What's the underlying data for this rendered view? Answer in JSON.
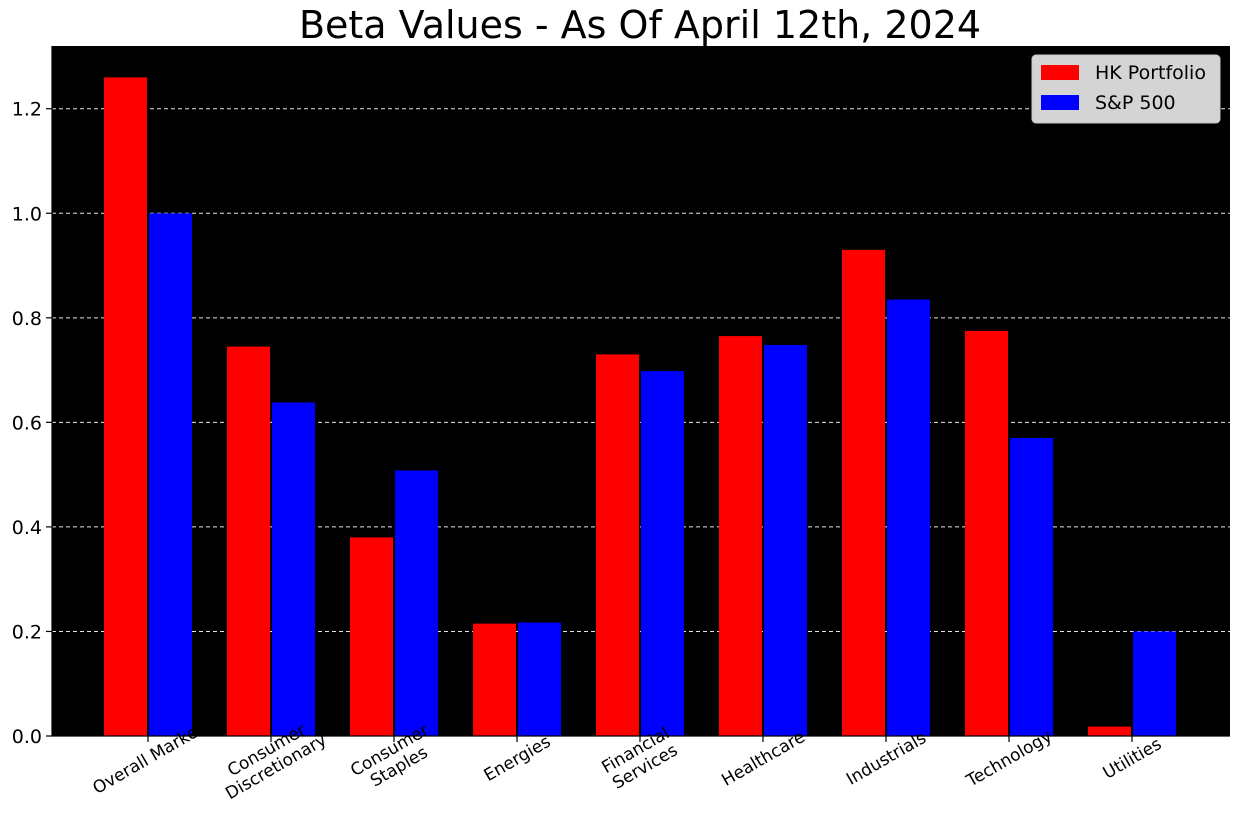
{
  "chart_data": {
    "type": "bar",
    "title": "Beta Values - As Of April 12th, 2024",
    "xlabel": "",
    "ylabel": "",
    "ylim": [
      0,
      1.32
    ],
    "yticks": [
      "0.0",
      "0.2",
      "0.4",
      "0.6",
      "0.8",
      "1.0",
      "1.2"
    ],
    "grid": "horizontal dashed",
    "legend_position": "top-right",
    "background": "#000000",
    "categories": [
      [
        "Overall Market"
      ],
      [
        "Consumer",
        "Discretionary"
      ],
      [
        "Consumer",
        "Staples"
      ],
      [
        "Energies"
      ],
      [
        "Financial",
        "Services"
      ],
      [
        "Healthcare"
      ],
      [
        "Industrials"
      ],
      [
        "Technology"
      ],
      [
        "Utilities"
      ]
    ],
    "series": [
      {
        "name": "HK Portfolio",
        "color": "#ff0000",
        "values": [
          1.26,
          0.745,
          0.38,
          0.215,
          0.73,
          0.765,
          0.93,
          0.775,
          0.018
        ]
      },
      {
        "name": "S&P 500",
        "color": "#0000ff",
        "values": [
          1.0,
          0.638,
          0.508,
          0.217,
          0.698,
          0.748,
          0.835,
          0.57,
          0.2
        ]
      }
    ]
  }
}
